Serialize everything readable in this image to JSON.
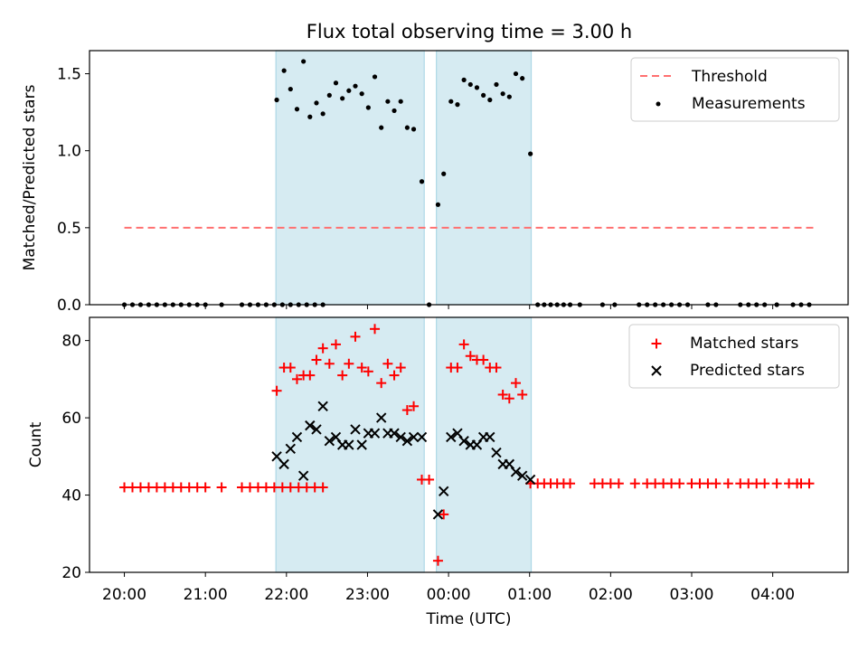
{
  "title": "Flux total observing time = 3.00 h",
  "colors": {
    "threshold": "#ff7070",
    "measurement": "#000000",
    "matched": "#ff0000",
    "predicted": "#000000",
    "span": "#add8e6"
  },
  "chart_data": [
    {
      "type": "scatter",
      "panel": "top",
      "ylabel": "Matched/Predicted stars",
      "ylim": [
        0,
        1.65
      ],
      "yticks": [
        "0.0",
        "0.5",
        "1.0",
        "1.5"
      ],
      "xlim": [
        -4.43,
        4.93
      ],
      "legend_position": "top-right",
      "spans": [
        [
          -2.13,
          -0.3
        ],
        [
          -0.15,
          1.02
        ]
      ],
      "threshold": {
        "name": "Threshold",
        "y": 0.5,
        "x_range": [
          -4.0,
          4.5
        ]
      },
      "series": [
        {
          "name": "Measurements",
          "points": [
            [
              -4.0,
              0
            ],
            [
              -3.9,
              0
            ],
            [
              -3.8,
              0
            ],
            [
              -3.7,
              0
            ],
            [
              -3.6,
              0
            ],
            [
              -3.5,
              0
            ],
            [
              -3.4,
              0
            ],
            [
              -3.3,
              0
            ],
            [
              -3.2,
              0
            ],
            [
              -3.1,
              0
            ],
            [
              -3.0,
              0
            ],
            [
              -2.8,
              0
            ],
            [
              -2.55,
              0
            ],
            [
              -2.45,
              0
            ],
            [
              -2.35,
              0
            ],
            [
              -2.25,
              0
            ],
            [
              -2.15,
              0
            ],
            [
              -2.05,
              0
            ],
            [
              -1.95,
              0
            ],
            [
              -1.85,
              0
            ],
            [
              -1.75,
              0
            ],
            [
              -1.65,
              0
            ],
            [
              -1.55,
              0
            ],
            [
              -2.12,
              1.33
            ],
            [
              -2.03,
              1.52
            ],
            [
              -1.95,
              1.4
            ],
            [
              -1.87,
              1.27
            ],
            [
              -1.79,
              1.58
            ],
            [
              -1.71,
              1.22
            ],
            [
              -1.63,
              1.31
            ],
            [
              -1.55,
              1.24
            ],
            [
              -1.47,
              1.36
            ],
            [
              -1.39,
              1.44
            ],
            [
              -1.31,
              1.34
            ],
            [
              -1.23,
              1.39
            ],
            [
              -1.15,
              1.42
            ],
            [
              -1.07,
              1.37
            ],
            [
              -0.99,
              1.28
            ],
            [
              -0.91,
              1.48
            ],
            [
              -0.83,
              1.15
            ],
            [
              -0.75,
              1.32
            ],
            [
              -0.67,
              1.26
            ],
            [
              -0.59,
              1.32
            ],
            [
              -0.51,
              1.15
            ],
            [
              -0.43,
              1.14
            ],
            [
              -0.33,
              0.8
            ],
            [
              -0.24,
              0
            ],
            [
              -0.13,
              0.65
            ],
            [
              -0.06,
              0.85
            ],
            [
              0.03,
              1.32
            ],
            [
              0.11,
              1.3
            ],
            [
              0.19,
              1.46
            ],
            [
              0.27,
              1.43
            ],
            [
              0.35,
              1.41
            ],
            [
              0.43,
              1.36
            ],
            [
              0.51,
              1.33
            ],
            [
              0.59,
              1.43
            ],
            [
              0.67,
              1.37
            ],
            [
              0.75,
              1.35
            ],
            [
              0.83,
              1.5
            ],
            [
              0.91,
              1.47
            ],
            [
              1.01,
              0.98
            ],
            [
              1.1,
              0
            ],
            [
              1.18,
              0
            ],
            [
              1.26,
              0
            ],
            [
              1.34,
              0
            ],
            [
              1.42,
              0
            ],
            [
              1.5,
              0
            ],
            [
              1.62,
              0
            ],
            [
              1.9,
              0
            ],
            [
              2.05,
              0
            ],
            [
              2.35,
              0
            ],
            [
              2.45,
              0
            ],
            [
              2.55,
              0
            ],
            [
              2.65,
              0
            ],
            [
              2.75,
              0
            ],
            [
              2.85,
              0
            ],
            [
              2.95,
              0
            ],
            [
              3.2,
              0
            ],
            [
              3.3,
              0
            ],
            [
              3.6,
              0
            ],
            [
              3.7,
              0
            ],
            [
              3.8,
              0
            ],
            [
              3.9,
              0
            ],
            [
              4.05,
              0
            ],
            [
              4.25,
              0
            ],
            [
              4.35,
              0
            ],
            [
              4.45,
              0
            ]
          ]
        }
      ]
    },
    {
      "type": "scatter",
      "panel": "bottom",
      "xlabel": "Time (UTC)",
      "ylabel": "Count",
      "ylim": [
        20,
        86
      ],
      "yticks": [
        "20",
        "40",
        "60",
        "80"
      ],
      "xlim": [
        -4.43,
        4.93
      ],
      "x_tick_values": [
        -4,
        -3,
        -2,
        -1,
        0,
        1,
        2,
        3,
        4
      ],
      "x_tick_labels": [
        "20:00",
        "21:00",
        "22:00",
        "23:00",
        "00:00",
        "01:00",
        "02:00",
        "03:00",
        "04:00"
      ],
      "legend_position": "top-right",
      "spans": [
        [
          -2.13,
          -0.3
        ],
        [
          -0.15,
          1.02
        ]
      ],
      "series": [
        {
          "name": "Matched stars",
          "marker": "plus",
          "points": [
            [
              -4.0,
              42
            ],
            [
              -3.9,
              42
            ],
            [
              -3.8,
              42
            ],
            [
              -3.7,
              42
            ],
            [
              -3.6,
              42
            ],
            [
              -3.5,
              42
            ],
            [
              -3.4,
              42
            ],
            [
              -3.3,
              42
            ],
            [
              -3.2,
              42
            ],
            [
              -3.1,
              42
            ],
            [
              -3.0,
              42
            ],
            [
              -2.8,
              42
            ],
            [
              -2.55,
              42
            ],
            [
              -2.45,
              42
            ],
            [
              -2.35,
              42
            ],
            [
              -2.25,
              42
            ],
            [
              -2.15,
              42
            ],
            [
              -2.05,
              42
            ],
            [
              -1.95,
              42
            ],
            [
              -1.85,
              42
            ],
            [
              -1.75,
              42
            ],
            [
              -1.65,
              42
            ],
            [
              -1.55,
              42
            ],
            [
              -2.12,
              67
            ],
            [
              -2.03,
              73
            ],
            [
              -1.95,
              73
            ],
            [
              -1.87,
              70
            ],
            [
              -1.79,
              71
            ],
            [
              -1.71,
              71
            ],
            [
              -1.63,
              75
            ],
            [
              -1.55,
              78
            ],
            [
              -1.47,
              74
            ],
            [
              -1.39,
              79
            ],
            [
              -1.31,
              71
            ],
            [
              -1.23,
              74
            ],
            [
              -1.15,
              81
            ],
            [
              -1.07,
              73
            ],
            [
              -0.99,
              72
            ],
            [
              -0.91,
              83
            ],
            [
              -0.83,
              69
            ],
            [
              -0.75,
              74
            ],
            [
              -0.67,
              71
            ],
            [
              -0.59,
              73
            ],
            [
              -0.51,
              62
            ],
            [
              -0.43,
              63
            ],
            [
              -0.33,
              44
            ],
            [
              -0.24,
              44
            ],
            [
              -0.13,
              23
            ],
            [
              -0.06,
              35
            ],
            [
              0.03,
              73
            ],
            [
              0.11,
              73
            ],
            [
              0.19,
              79
            ],
            [
              0.27,
              76
            ],
            [
              0.35,
              75
            ],
            [
              0.43,
              75
            ],
            [
              0.51,
              73
            ],
            [
              0.59,
              73
            ],
            [
              0.67,
              66
            ],
            [
              0.75,
              65
            ],
            [
              0.83,
              69
            ],
            [
              0.91,
              66
            ],
            [
              1.01,
              43
            ],
            [
              1.1,
              43
            ],
            [
              1.18,
              43
            ],
            [
              1.26,
              43
            ],
            [
              1.34,
              43
            ],
            [
              1.42,
              43
            ],
            [
              1.5,
              43
            ],
            [
              1.8,
              43
            ],
            [
              1.9,
              43
            ],
            [
              2.0,
              43
            ],
            [
              2.1,
              43
            ],
            [
              2.3,
              43
            ],
            [
              2.45,
              43
            ],
            [
              2.55,
              43
            ],
            [
              2.65,
              43
            ],
            [
              2.75,
              43
            ],
            [
              2.85,
              43
            ],
            [
              3.0,
              43
            ],
            [
              3.1,
              43
            ],
            [
              3.2,
              43
            ],
            [
              3.3,
              43
            ],
            [
              3.45,
              43
            ],
            [
              3.6,
              43
            ],
            [
              3.7,
              43
            ],
            [
              3.8,
              43
            ],
            [
              3.9,
              43
            ],
            [
              4.05,
              43
            ],
            [
              4.2,
              43
            ],
            [
              4.3,
              43
            ],
            [
              4.35,
              43
            ],
            [
              4.45,
              43
            ]
          ]
        },
        {
          "name": "Predicted stars",
          "marker": "x",
          "points": [
            [
              -2.12,
              50
            ],
            [
              -2.03,
              48
            ],
            [
              -1.95,
              52
            ],
            [
              -1.87,
              55
            ],
            [
              -1.79,
              45
            ],
            [
              -1.71,
              58
            ],
            [
              -1.63,
              57
            ],
            [
              -1.55,
              63
            ],
            [
              -1.47,
              54
            ],
            [
              -1.39,
              55
            ],
            [
              -1.31,
              53
            ],
            [
              -1.23,
              53
            ],
            [
              -1.15,
              57
            ],
            [
              -1.07,
              53
            ],
            [
              -0.99,
              56
            ],
            [
              -0.91,
              56
            ],
            [
              -0.83,
              60
            ],
            [
              -0.75,
              56
            ],
            [
              -0.67,
              56
            ],
            [
              -0.59,
              55
            ],
            [
              -0.51,
              54
            ],
            [
              -0.43,
              55
            ],
            [
              -0.33,
              55
            ],
            [
              -0.13,
              35
            ],
            [
              -0.06,
              41
            ],
            [
              0.03,
              55
            ],
            [
              0.11,
              56
            ],
            [
              0.19,
              54
            ],
            [
              0.27,
              53
            ],
            [
              0.35,
              53
            ],
            [
              0.43,
              55
            ],
            [
              0.51,
              55
            ],
            [
              0.59,
              51
            ],
            [
              0.67,
              48
            ],
            [
              0.75,
              48
            ],
            [
              0.83,
              46
            ],
            [
              0.91,
              45
            ],
            [
              1.01,
              44
            ]
          ]
        }
      ]
    }
  ]
}
